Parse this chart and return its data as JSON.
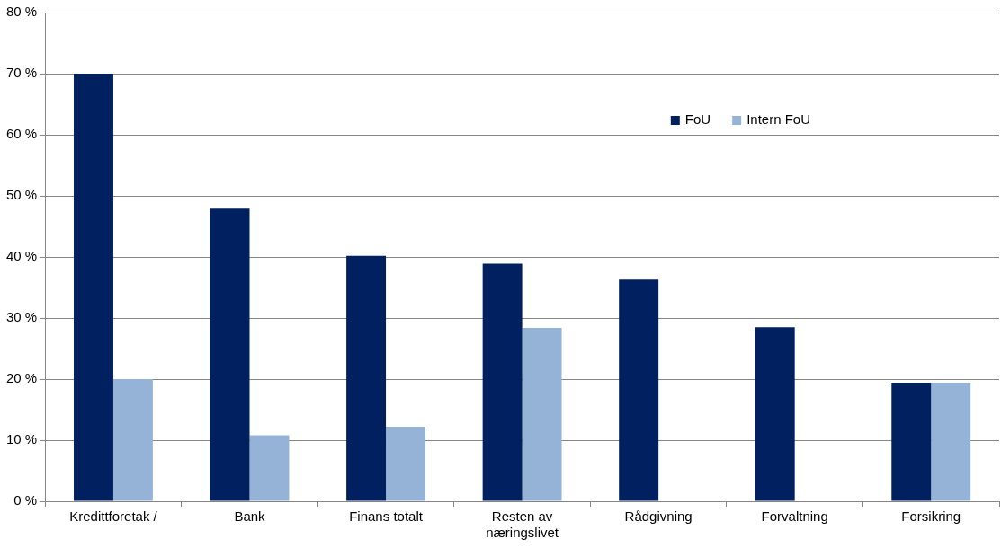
{
  "chart_data": {
    "type": "bar",
    "categories": [
      "Kredittforetak /",
      "Bank",
      "Finans totalt",
      "Resten av næringslivet",
      "Rådgivning",
      "Forvaltning",
      "Forsikring"
    ],
    "series": [
      {
        "name": "FoU",
        "color": "#002060",
        "values": [
          70,
          47.9,
          40.2,
          38.9,
          36.3,
          28.5,
          19.4
        ]
      },
      {
        "name": "Intern FoU",
        "color": "#95b3d7",
        "values": [
          20,
          10.8,
          12.2,
          28.4,
          null,
          null,
          19.4
        ]
      }
    ],
    "ylim": [
      0,
      80
    ],
    "yticks": [
      {
        "value": 0,
        "label": "0 %"
      },
      {
        "value": 10,
        "label": "10 %"
      },
      {
        "value": 20,
        "label": "20 %"
      },
      {
        "value": 30,
        "label": "30 %"
      },
      {
        "value": 40,
        "label": "40 %"
      },
      {
        "value": 50,
        "label": "50 %"
      },
      {
        "value": 60,
        "label": "60 %"
      },
      {
        "value": 70,
        "label": "70 %"
      },
      {
        "value": 80,
        "label": "80 %"
      }
    ],
    "grid": "y",
    "legend": "top right"
  }
}
